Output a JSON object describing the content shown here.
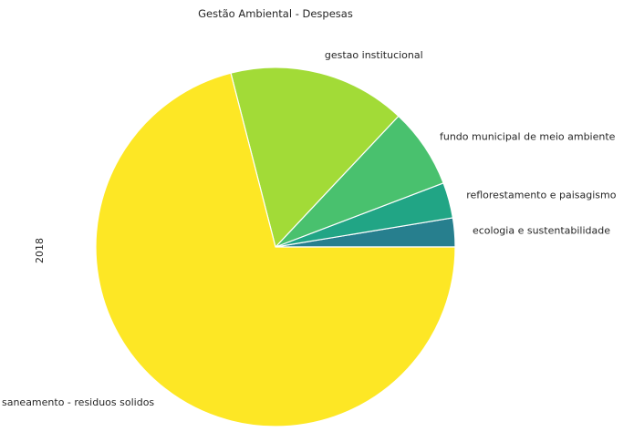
{
  "chart_data": {
    "type": "pie",
    "title": "Gestão Ambiental - Despesas",
    "ylabel": "2018",
    "slices": [
      {
        "label": "ecologia e sustentabilidade",
        "value": 2.6,
        "color": "#277f8e"
      },
      {
        "label": "reflorestamento e paisagismo",
        "value": 3.2,
        "color": "#21a585"
      },
      {
        "label": "fundo municipal de meio ambiente",
        "value": 7.2,
        "color": "#49c16e"
      },
      {
        "label": "gestao institucional",
        "value": 16.0,
        "color": "#a2db37"
      },
      {
        "label": "saneamento - residuos solidos",
        "value": 71.0,
        "color": "#fde725"
      }
    ],
    "start_angle_deg": 0,
    "direction": "counterclockwise"
  }
}
